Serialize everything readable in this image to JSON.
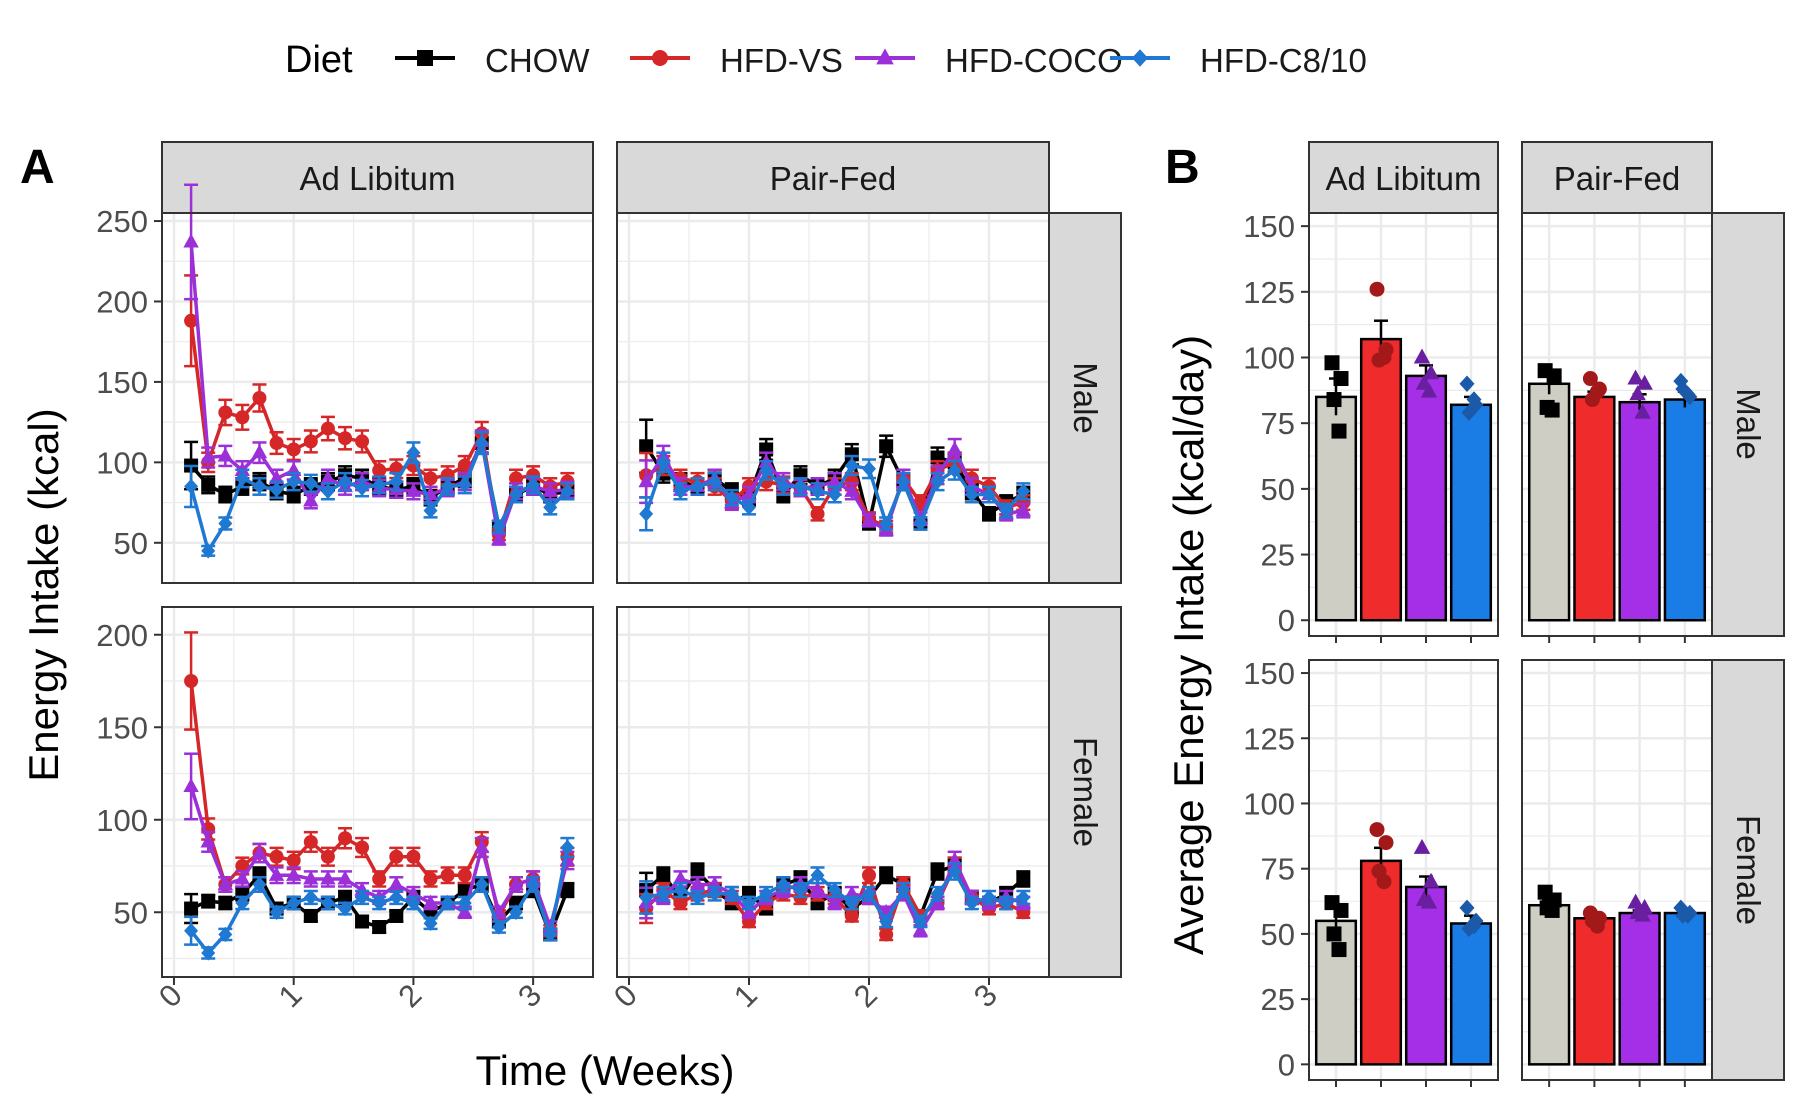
{
  "legend": {
    "title": "Diet",
    "items": [
      {
        "label": "CHOW",
        "color": "#000000",
        "shape": "square"
      },
      {
        "label": "HFD-VS",
        "color": "#d62728",
        "shape": "circle"
      },
      {
        "label": "HFD-COCO",
        "color": "#9b30d9",
        "shape": "triangle"
      },
      {
        "label": "HFD-C8/10",
        "color": "#1f78d1",
        "shape": "diamond"
      }
    ]
  },
  "panel_labels": {
    "a": "A",
    "b": "B"
  },
  "strips": {
    "ad_libitum": "Ad Libitum",
    "pair_fed": "Pair-Fed",
    "male": "Male",
    "female": "Female"
  },
  "axes": {
    "a_xlabel": "Time (Weeks)",
    "a_ylabel": "Energy Intake (kcal)",
    "b_ylabel": "Average Energy Intake (kcal/day)",
    "a_xticks": [
      "0",
      "1",
      "2",
      "3"
    ],
    "a_male_yticks": [
      "50",
      "100",
      "150",
      "200",
      "250"
    ],
    "a_female_yticks": [
      "50",
      "100",
      "150",
      "200"
    ],
    "b_yticks": [
      "0",
      "25",
      "50",
      "75",
      "100",
      "125",
      "150"
    ]
  },
  "chart_data": [
    {
      "type": "line",
      "panel": "A",
      "xlabel": "Time (Weeks)",
      "ylabel": "Energy Intake (kcal)",
      "x": [
        0.143,
        0.286,
        0.429,
        0.571,
        0.714,
        0.857,
        1.0,
        1.143,
        1.286,
        1.429,
        1.571,
        1.714,
        1.857,
        2.0,
        2.143,
        2.286,
        2.429,
        2.571,
        2.714,
        2.857,
        3.0,
        3.143,
        3.286
      ],
      "xlim": [
        -0.1,
        3.5
      ],
      "facets": [
        {
          "feeding": "Ad Libitum",
          "sex": "Male",
          "ylim": [
            25,
            255
          ],
          "series": [
            {
              "name": "CHOW",
              "values": [
                98,
                86,
                80,
                85,
                88,
                82,
                80,
                85,
                88,
                92,
                90,
                85,
                83,
                85,
                78,
                85,
                90,
                112,
                60,
                80,
                85,
                80,
                82
              ]
            },
            {
              "name": "HFD-VS",
              "values": [
                188,
                100,
                131,
                128,
                140,
                112,
                108,
                113,
                121,
                115,
                113,
                95,
                96,
                98,
                90,
                92,
                98,
                118,
                55,
                90,
                92,
                85,
                88
              ]
            },
            {
              "name": "HFD-COCO",
              "values": [
                237,
                103,
                104,
                95,
                106,
                90,
                95,
                76,
                90,
                85,
                88,
                84,
                83,
                82,
                80,
                84,
                88,
                113,
                52,
                82,
                85,
                82,
                83
              ]
            },
            {
              "name": "HFD-C8/10",
              "values": [
                85,
                45,
                62,
                90,
                85,
                83,
                88,
                87,
                82,
                88,
                84,
                86,
                88,
                106,
                70,
                85,
                86,
                112,
                60,
                80,
                86,
                72,
                82
              ]
            }
          ]
        },
        {
          "feeding": "Pair-Fed",
          "sex": "Male",
          "ylim": [
            25,
            255
          ],
          "series": [
            {
              "name": "CHOW",
              "values": [
                110,
                93,
                88,
                85,
                90,
                82,
                78,
                108,
                80,
                92,
                85,
                90,
                105,
                62,
                110,
                88,
                62,
                103,
                100,
                82,
                68,
                75,
                80
              ]
            },
            {
              "name": "HFD-VS",
              "values": [
                92,
                98,
                90,
                88,
                85,
                76,
                85,
                88,
                86,
                84,
                68,
                85,
                88,
                65,
                60,
                90,
                75,
                95,
                100,
                90,
                85,
                72,
                75
              ]
            },
            {
              "name": "HFD-COCO",
              "values": [
                88,
                104,
                85,
                85,
                90,
                75,
                80,
                100,
                88,
                84,
                85,
                88,
                82,
                64,
                58,
                90,
                65,
                92,
                108,
                85,
                80,
                68,
                70
              ]
            },
            {
              "name": "HFD-C8/10",
              "values": [
                68,
                100,
                82,
                85,
                88,
                78,
                72,
                95,
                85,
                85,
                82,
                80,
                98,
                96,
                62,
                88,
                62,
                88,
                95,
                80,
                80,
                70,
                82
              ]
            }
          ]
        },
        {
          "feeding": "Ad Libitum",
          "sex": "Female",
          "ylim": [
            15,
            215
          ],
          "series": [
            {
              "name": "CHOW",
              "values": [
                52,
                56,
                55,
                60,
                70,
                52,
                55,
                48,
                55,
                58,
                45,
                42,
                48,
                58,
                50,
                55,
                62,
                65,
                45,
                55,
                62,
                38,
                62
              ]
            },
            {
              "name": "HFD-VS",
              "values": [
                175,
                95,
                65,
                75,
                82,
                80,
                78,
                88,
                80,
                90,
                85,
                68,
                80,
                80,
                68,
                70,
                70,
                88,
                48,
                65,
                68,
                40,
                80
              ]
            },
            {
              "name": "HFD-COCO",
              "values": [
                118,
                88,
                65,
                68,
                82,
                70,
                70,
                68,
                68,
                68,
                62,
                58,
                65,
                60,
                55,
                55,
                50,
                85,
                50,
                65,
                68,
                42,
                78
              ]
            },
            {
              "name": "HFD-C8/10",
              "values": [
                40,
                28,
                38,
                55,
                65,
                50,
                55,
                58,
                55,
                52,
                58,
                55,
                58,
                55,
                44,
                55,
                55,
                65,
                42,
                50,
                65,
                38,
                85
              ]
            }
          ]
        },
        {
          "feeding": "Pair-Fed",
          "sex": "Female",
          "ylim": [
            15,
            215
          ],
          "series": [
            {
              "name": "CHOW",
              "values": [
                62,
                70,
                58,
                72,
                62,
                55,
                60,
                52,
                65,
                68,
                55,
                60,
                52,
                58,
                70,
                65,
                48,
                72,
                75,
                58,
                55,
                60,
                68
              ]
            },
            {
              "name": "HFD-VS",
              "values": [
                52,
                62,
                55,
                60,
                62,
                58,
                45,
                55,
                60,
                58,
                60,
                58,
                48,
                70,
                38,
                65,
                48,
                55,
                75,
                58,
                52,
                55,
                50
              ]
            },
            {
              "name": "HFD-COCO",
              "values": [
                55,
                58,
                68,
                65,
                65,
                60,
                50,
                58,
                62,
                65,
                62,
                55,
                60,
                58,
                50,
                60,
                40,
                55,
                78,
                58,
                55,
                58,
                55
              ]
            },
            {
              "name": "HFD-C8/10",
              "values": [
                58,
                60,
                62,
                58,
                60,
                60,
                55,
                60,
                65,
                62,
                70,
                62,
                55,
                60,
                45,
                62,
                45,
                60,
                72,
                55,
                58,
                55,
                58
              ]
            }
          ]
        }
      ]
    },
    {
      "type": "bar",
      "panel": "B",
      "ylabel": "Average Energy Intake (kcal/day)",
      "ylim": [
        0,
        155
      ],
      "categories": [
        "CHOW",
        "HFD-VS",
        "HFD-COCO",
        "HFD-C8/10"
      ],
      "fills": [
        "#cfcec4",
        "#f02b2b",
        "#a42fe6",
        "#1a7de6"
      ],
      "point_colors": [
        "#000000",
        "#a31919",
        "#6a1fa0",
        "#1a5aa8"
      ],
      "facets": [
        {
          "feeding": "Ad Libitum",
          "sex": "Male",
          "values": [
            85,
            107,
            93,
            82
          ],
          "errors": [
            7,
            7,
            4,
            3
          ],
          "points": [
            [
              98,
              92,
              84,
              72
            ],
            [
              126,
              103,
              99,
              100
            ],
            [
              100,
              94,
              90,
              87
            ],
            [
              90,
              82,
              79,
              84
            ]
          ]
        },
        {
          "feeding": "Pair-Fed",
          "sex": "Male",
          "values": [
            90,
            85,
            83,
            84
          ],
          "errors": [
            4,
            2,
            3,
            3
          ],
          "points": [
            [
              95,
              93,
              81,
              80
            ],
            [
              92,
              88,
              84,
              87
            ],
            [
              92,
              90,
              86,
              79
            ],
            [
              91,
              85,
              88,
              86
            ]
          ]
        },
        {
          "feeding": "Ad Libitum",
          "sex": "Female",
          "values": [
            55,
            78,
            68,
            54
          ],
          "errors": [
            5,
            5,
            4,
            3
          ],
          "points": [
            [
              62,
              59,
              50,
              44
            ],
            [
              90,
              85,
              74,
              70
            ],
            [
              83,
              70,
              63,
              62
            ],
            [
              60,
              55,
              52,
              53
            ]
          ]
        },
        {
          "feeding": "Pair-Fed",
          "sex": "Female",
          "values": [
            61,
            56,
            58,
            58
          ],
          "errors": [
            2,
            2,
            1,
            1
          ],
          "points": [
            [
              66,
              63,
              60,
              59
            ],
            [
              58,
              56,
              55,
              53
            ],
            [
              62,
              60,
              58,
              57
            ],
            [
              60,
              58,
              57,
              57
            ]
          ]
        }
      ]
    }
  ]
}
